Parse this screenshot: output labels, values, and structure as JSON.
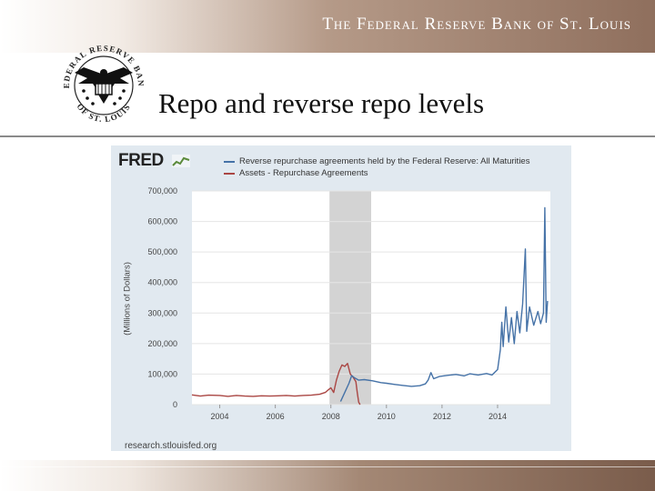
{
  "header": {
    "bank_name": "The Federal Reserve Bank of St. Louis",
    "seal_text_top": "FEDERAL RESERVE BANK",
    "seal_text_bottom": "OF ST. LOUIS"
  },
  "slide": {
    "title": "Repo and reverse repo levels"
  },
  "fred": {
    "logo": "FRED",
    "source": "research.stlouisfed.org"
  },
  "colors": {
    "reverse_repo": "#4572a7",
    "repo": "#aa4643",
    "recession": "#d3d3d3",
    "grid": "#e5e5e5"
  },
  "chart_data": {
    "type": "line",
    "ylabel": "(Millions of Dollars)",
    "ylim": [
      0,
      700000
    ],
    "xlim": [
      2003.0,
      2015.9
    ],
    "y_ticks": [
      "0",
      "100,000",
      "200,000",
      "300,000",
      "400,000",
      "500,000",
      "600,000",
      "700,000"
    ],
    "y_tick_values": [
      0,
      100000,
      200000,
      300000,
      400000,
      500000,
      600000,
      700000
    ],
    "x_ticks": [
      "2004",
      "2006",
      "2008",
      "2010",
      "2012",
      "2014"
    ],
    "x_tick_values": [
      2004,
      2006,
      2008,
      2010,
      2012,
      2014
    ],
    "recession": [
      2007.95,
      2009.45
    ],
    "legend_placement": "top",
    "series": [
      {
        "name": "Reverse repurchase agreements held by the Federal Reserve: All Maturities",
        "color": "#4572a7",
        "points": [
          [
            2008.35,
            10000
          ],
          [
            2008.5,
            40000
          ],
          [
            2008.65,
            70000
          ],
          [
            2008.75,
            95000
          ],
          [
            2008.85,
            88000
          ],
          [
            2009.0,
            80000
          ],
          [
            2009.2,
            82000
          ],
          [
            2009.5,
            78000
          ],
          [
            2009.8,
            72000
          ],
          [
            2010.0,
            70000
          ],
          [
            2010.3,
            66000
          ],
          [
            2010.6,
            63000
          ],
          [
            2010.9,
            60000
          ],
          [
            2011.2,
            62000
          ],
          [
            2011.4,
            68000
          ],
          [
            2011.5,
            80000
          ],
          [
            2011.6,
            105000
          ],
          [
            2011.7,
            85000
          ],
          [
            2011.9,
            92000
          ],
          [
            2012.2,
            96000
          ],
          [
            2012.5,
            99000
          ],
          [
            2012.8,
            94000
          ],
          [
            2013.0,
            101000
          ],
          [
            2013.3,
            97000
          ],
          [
            2013.6,
            102000
          ],
          [
            2013.8,
            97000
          ],
          [
            2014.0,
            115000
          ],
          [
            2014.1,
            180000
          ],
          [
            2014.15,
            270000
          ],
          [
            2014.2,
            190000
          ],
          [
            2014.3,
            320000
          ],
          [
            2014.4,
            205000
          ],
          [
            2014.5,
            285000
          ],
          [
            2014.6,
            200000
          ],
          [
            2014.7,
            305000
          ],
          [
            2014.8,
            235000
          ],
          [
            2014.9,
            330000
          ],
          [
            2015.0,
            510000
          ],
          [
            2015.05,
            240000
          ],
          [
            2015.15,
            320000
          ],
          [
            2015.3,
            260000
          ],
          [
            2015.45,
            305000
          ],
          [
            2015.55,
            265000
          ],
          [
            2015.65,
            300000
          ],
          [
            2015.7,
            645000
          ],
          [
            2015.75,
            270000
          ],
          [
            2015.8,
            340000
          ]
        ]
      },
      {
        "name": "Assets - Repurchase Agreements",
        "color": "#aa4643",
        "points": [
          [
            2003.0,
            32000
          ],
          [
            2003.3,
            28000
          ],
          [
            2003.6,
            31000
          ],
          [
            2004.0,
            30000
          ],
          [
            2004.3,
            27000
          ],
          [
            2004.6,
            30000
          ],
          [
            2004.9,
            28000
          ],
          [
            2005.2,
            27000
          ],
          [
            2005.5,
            29000
          ],
          [
            2005.8,
            28000
          ],
          [
            2006.1,
            29000
          ],
          [
            2006.4,
            30000
          ],
          [
            2006.7,
            28000
          ],
          [
            2007.0,
            30000
          ],
          [
            2007.3,
            31000
          ],
          [
            2007.6,
            34000
          ],
          [
            2007.8,
            40000
          ],
          [
            2007.9,
            48000
          ],
          [
            2008.0,
            55000
          ],
          [
            2008.1,
            40000
          ],
          [
            2008.2,
            80000
          ],
          [
            2008.3,
            110000
          ],
          [
            2008.4,
            130000
          ],
          [
            2008.5,
            125000
          ],
          [
            2008.6,
            135000
          ],
          [
            2008.7,
            100000
          ],
          [
            2008.8,
            90000
          ],
          [
            2008.9,
            75000
          ],
          [
            2008.95,
            40000
          ],
          [
            2009.0,
            8000
          ],
          [
            2009.05,
            0
          ]
        ]
      }
    ]
  }
}
